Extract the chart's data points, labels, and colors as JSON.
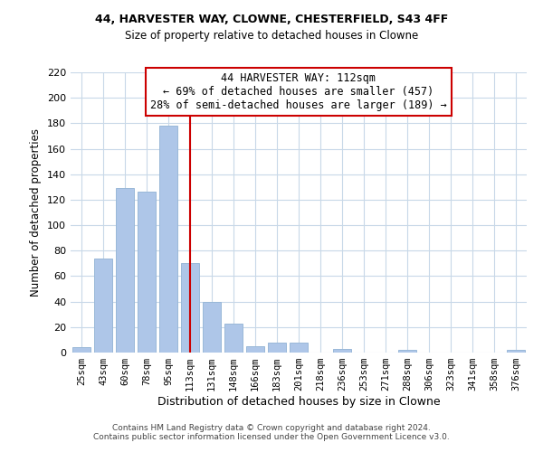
{
  "title1": "44, HARVESTER WAY, CLOWNE, CHESTERFIELD, S43 4FF",
  "title2": "Size of property relative to detached houses in Clowne",
  "xlabel": "Distribution of detached houses by size in Clowne",
  "ylabel": "Number of detached properties",
  "bar_labels": [
    "25sqm",
    "43sqm",
    "60sqm",
    "78sqm",
    "95sqm",
    "113sqm",
    "131sqm",
    "148sqm",
    "166sqm",
    "183sqm",
    "201sqm",
    "218sqm",
    "236sqm",
    "253sqm",
    "271sqm",
    "288sqm",
    "306sqm",
    "323sqm",
    "341sqm",
    "358sqm",
    "376sqm"
  ],
  "bar_values": [
    4,
    74,
    129,
    126,
    178,
    70,
    40,
    23,
    5,
    8,
    8,
    0,
    3,
    0,
    0,
    2,
    0,
    0,
    0,
    0,
    2
  ],
  "bar_color": "#aec6e8",
  "bar_edge_color": "#9ab8d8",
  "vline_x": 5,
  "vline_color": "#cc0000",
  "annotation_line1": "44 HARVESTER WAY: 112sqm",
  "annotation_line2": "← 69% of detached houses are smaller (457)",
  "annotation_line3": "28% of semi-detached houses are larger (189) →",
  "annotation_box_edgecolor": "#cc0000",
  "annotation_box_facecolor": "#ffffff",
  "ylim": [
    0,
    220
  ],
  "yticks": [
    0,
    20,
    40,
    60,
    80,
    100,
    120,
    140,
    160,
    180,
    200,
    220
  ],
  "footer1": "Contains HM Land Registry data © Crown copyright and database right 2024.",
  "footer2": "Contains public sector information licensed under the Open Government Licence v3.0.",
  "background_color": "#ffffff",
  "grid_color": "#c8d8e8"
}
